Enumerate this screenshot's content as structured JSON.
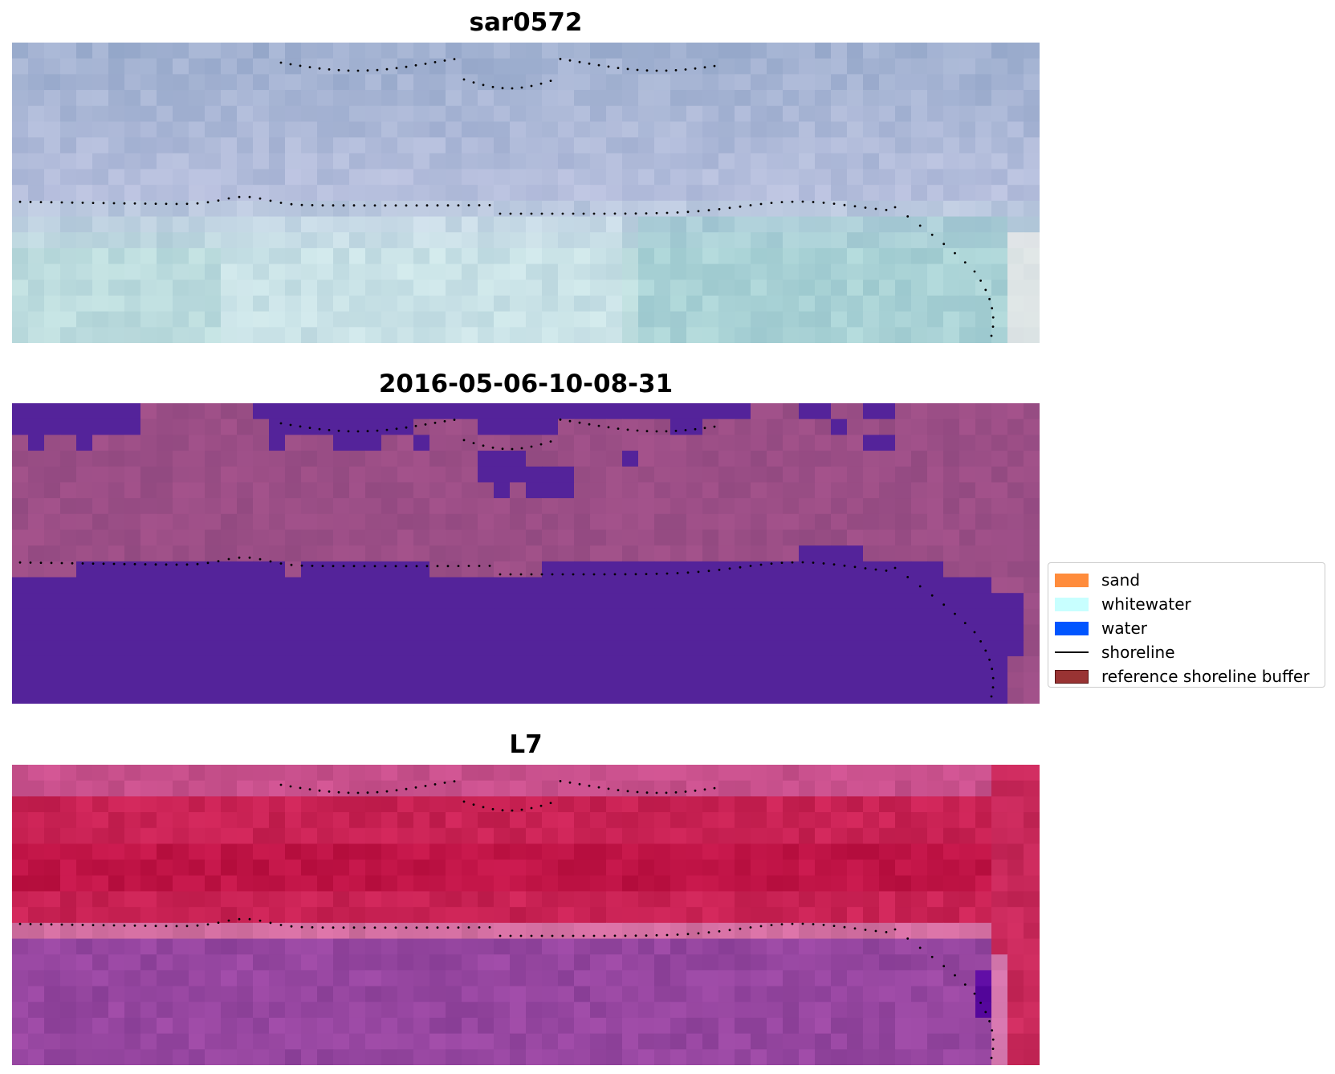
{
  "panels": [
    {
      "title": "sar0572",
      "kind": "rgb"
    },
    {
      "title": "2016-05-06-10-08-31",
      "kind": "classified"
    },
    {
      "title": "L7",
      "kind": "index"
    }
  ],
  "legend": {
    "items": [
      {
        "label": "sand",
        "color": "#ff8c3c",
        "type": "patch"
      },
      {
        "label": "whitewater",
        "color": "#c8ffff",
        "type": "patch"
      },
      {
        "label": "water",
        "color": "#0055ff",
        "type": "patch"
      },
      {
        "label": "shoreline",
        "color": "#000000",
        "type": "line"
      },
      {
        "label": "reference shoreline buffer",
        "color": "#993333",
        "type": "patch"
      }
    ]
  },
  "colors": {
    "classified_water": "#54239a",
    "classified_land": "#9b4f86",
    "shoreline_points": "#000000"
  }
}
